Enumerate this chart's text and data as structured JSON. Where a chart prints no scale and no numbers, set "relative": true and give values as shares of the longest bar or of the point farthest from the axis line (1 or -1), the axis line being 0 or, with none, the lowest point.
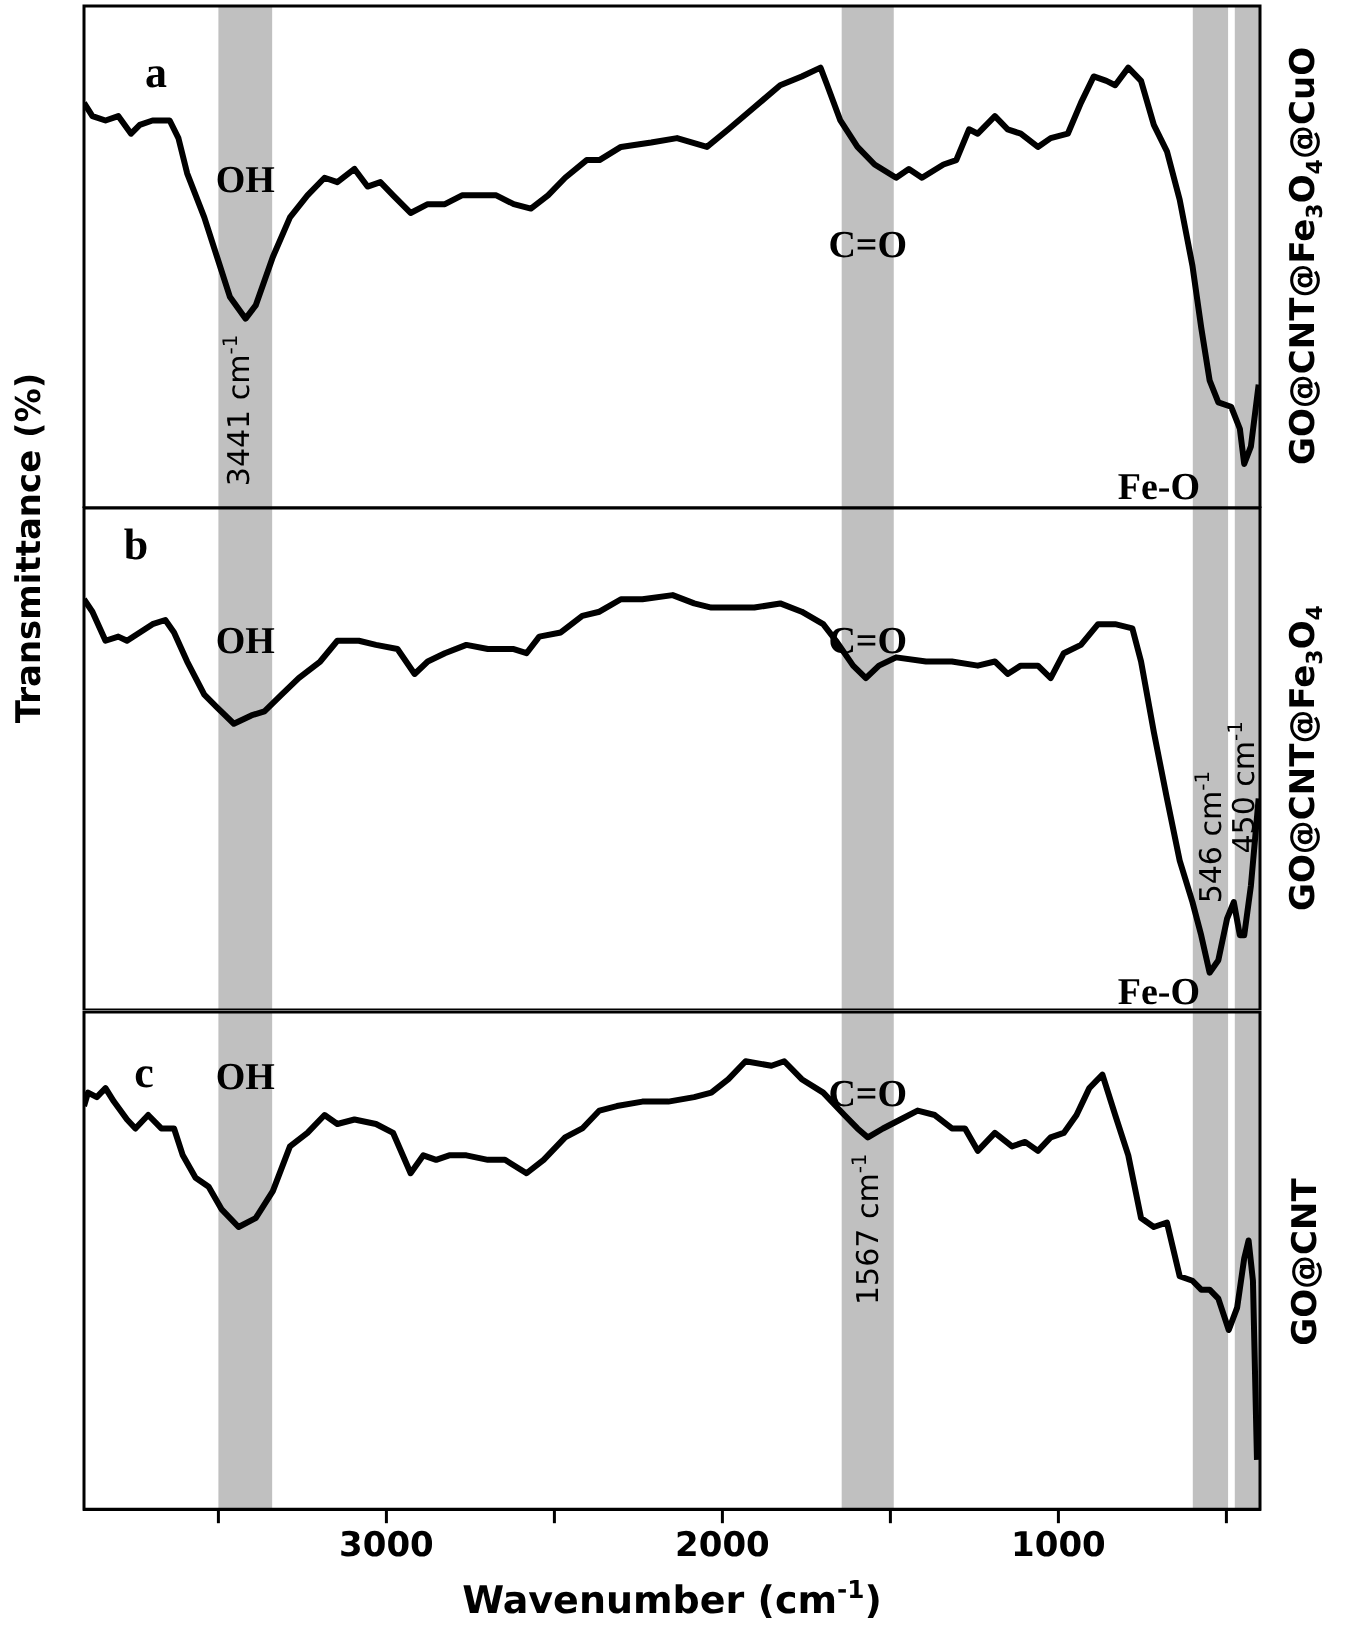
{
  "chart_data": [
    {
      "type": "line",
      "relative": true,
      "color": "#000000",
      "y2label": "GO@CNT@Fe$_{3}$O$_{4}$@CuO",
      "tick_labels": false,
      "xlim": [
        3900,
        400
      ],
      "x": [
        3900,
        3875,
        3836,
        3798,
        3760,
        3734,
        3696,
        3645,
        3619,
        3593,
        3542,
        3504,
        3466,
        3419,
        3389,
        3338,
        3287,
        3235,
        3184,
        3146,
        3095,
        3056,
        3018,
        2980,
        2928,
        2877,
        2826,
        2775,
        2724,
        2673,
        2621,
        2570,
        2519,
        2468,
        2404,
        2366,
        2302,
        2212,
        2135,
        2046,
        1982,
        1905,
        1828,
        1764,
        1708,
        1688,
        1649,
        1598,
        1547,
        1483,
        1445,
        1406,
        1342,
        1304,
        1266,
        1240,
        1189,
        1151,
        1112,
        1061,
        1023,
        972,
        933,
        895,
        857,
        831,
        792,
        754,
        716,
        677,
        639,
        601,
        575,
        550,
        524,
        486,
        460,
        447,
        427,
        404
      ],
      "values": [
        0.92,
        0.89,
        0.88,
        0.89,
        0.85,
        0.87,
        0.88,
        0.88,
        0.84,
        0.76,
        0.66,
        0.57,
        0.48,
        0.43,
        0.46,
        0.57,
        0.66,
        0.71,
        0.75,
        0.74,
        0.77,
        0.73,
        0.74,
        0.71,
        0.67,
        0.69,
        0.69,
        0.71,
        0.71,
        0.71,
        0.69,
        0.68,
        0.71,
        0.75,
        0.79,
        0.79,
        0.82,
        0.83,
        0.84,
        0.82,
        0.86,
        0.91,
        0.96,
        0.98,
        1.0,
        0.96,
        0.88,
        0.82,
        0.78,
        0.75,
        0.77,
        0.75,
        0.78,
        0.79,
        0.86,
        0.85,
        0.89,
        0.86,
        0.85,
        0.82,
        0.84,
        0.85,
        0.92,
        0.98,
        0.97,
        0.96,
        1.0,
        0.97,
        0.87,
        0.81,
        0.7,
        0.55,
        0.41,
        0.29,
        0.24,
        0.23,
        0.18,
        0.1,
        0.14,
        0.28
      ],
      "bands": [
        {
          "axis": "x",
          "from": 3500,
          "to": 3340,
          "color": "#c0c0c0",
          "label": "OH"
        },
        {
          "axis": "x",
          "from": 1645,
          "to": 1490,
          "color": "#c0c0c0",
          "label": "C=O"
        },
        {
          "axis": "x",
          "from": 600,
          "to": 495,
          "color": "#c0c0c0",
          "label": "Fe-O"
        },
        {
          "axis": "x",
          "from": 475,
          "to": 400,
          "color": "#c0c0c0"
        }
      ],
      "annotations": [
        "a",
        {
          "text": "3441 cm$^{-1}$",
          "x": 3441,
          "y": 0.43
        }
      ]
    },
    {
      "type": "line",
      "relative": true,
      "color": "#000000",
      "ylabel": "Transmittance (%)",
      "y2label": "GO@CNT@Fe$_{3}$O$_{4}$",
      "tick_labels": false,
      "xlim": [
        3900,
        400
      ],
      "x": [
        3900,
        3875,
        3836,
        3798,
        3772,
        3734,
        3696,
        3658,
        3632,
        3593,
        3542,
        3505,
        3454,
        3402,
        3363,
        3312,
        3261,
        3197,
        3146,
        3082,
        3031,
        2967,
        2916,
        2877,
        2826,
        2762,
        2698,
        2621,
        2583,
        2545,
        2481,
        2417,
        2366,
        2302,
        2238,
        2148,
        2084,
        2033,
        1956,
        1905,
        1828,
        1764,
        1700,
        1662,
        1611,
        1573,
        1534,
        1483,
        1394,
        1317,
        1240,
        1189,
        1151,
        1112,
        1061,
        1023,
        984,
        933,
        882,
        831,
        780,
        754,
        716,
        677,
        639,
        601,
        575,
        550,
        524,
        498,
        478,
        460,
        447,
        427,
        404
      ],
      "values": [
        0.99,
        0.96,
        0.89,
        0.9,
        0.89,
        0.91,
        0.93,
        0.94,
        0.91,
        0.84,
        0.76,
        0.73,
        0.69,
        0.71,
        0.72,
        0.76,
        0.8,
        0.84,
        0.89,
        0.89,
        0.88,
        0.87,
        0.81,
        0.84,
        0.86,
        0.88,
        0.87,
        0.87,
        0.86,
        0.9,
        0.91,
        0.95,
        0.96,
        0.99,
        0.99,
        1.0,
        0.98,
        0.97,
        0.97,
        0.97,
        0.98,
        0.96,
        0.93,
        0.89,
        0.83,
        0.8,
        0.83,
        0.85,
        0.84,
        0.84,
        0.83,
        0.84,
        0.81,
        0.83,
        0.83,
        0.8,
        0.86,
        0.88,
        0.93,
        0.93,
        0.92,
        0.84,
        0.67,
        0.51,
        0.36,
        0.26,
        0.18,
        0.09,
        0.12,
        0.22,
        0.26,
        0.18,
        0.18,
        0.3,
        0.51
      ],
      "bands": [
        {
          "axis": "x",
          "from": 3500,
          "to": 3340,
          "color": "#c0c0c0",
          "label": "OH"
        },
        {
          "axis": "x",
          "from": 1645,
          "to": 1490,
          "color": "#c0c0c0",
          "label": "C=O"
        },
        {
          "axis": "x",
          "from": 600,
          "to": 495,
          "color": "#c0c0c0",
          "label": "Fe-O"
        },
        {
          "axis": "x",
          "from": 475,
          "to": 400,
          "color": "#c0c0c0"
        }
      ],
      "annotations": [
        "b",
        {
          "text": "546 cm$^{-1}$",
          "x": 546,
          "y": 0.09
        },
        {
          "text": "450 cm$^{-1}$",
          "x": 450,
          "y": 0.18
        }
      ]
    },
    {
      "type": "line",
      "relative": true,
      "color": "#000000",
      "xlabel": "Wavenumber (cm$^{-1}$)",
      "y2label": "GO@CNT",
      "tick_labels": "x",
      "xlim": [
        3900,
        400
      ],
      "xticks": [
        {
          "value": 3500,
          "label": null
        },
        3000,
        {
          "value": 2500,
          "label": null
        },
        2000,
        {
          "value": 1500,
          "label": null
        },
        1000,
        {
          "value": 500,
          "label": null
        }
      ],
      "x": [
        3900,
        3888,
        3862,
        3836,
        3811,
        3772,
        3747,
        3709,
        3670,
        3632,
        3606,
        3568,
        3529,
        3491,
        3440,
        3389,
        3338,
        3287,
        3235,
        3184,
        3146,
        3095,
        3031,
        2980,
        2928,
        2890,
        2852,
        2813,
        2762,
        2698,
        2647,
        2583,
        2532,
        2468,
        2417,
        2366,
        2314,
        2238,
        2161,
        2084,
        2033,
        1982,
        1931,
        1854,
        1816,
        1764,
        1700,
        1637,
        1598,
        1567,
        1522,
        1470,
        1419,
        1368,
        1317,
        1278,
        1240,
        1189,
        1138,
        1099,
        1061,
        1023,
        984,
        946,
        908,
        869,
        831,
        792,
        754,
        716,
        677,
        639,
        601,
        575,
        550,
        524,
        493,
        468,
        447,
        434,
        421,
        409
      ],
      "values": [
        0.9,
        0.93,
        0.92,
        0.94,
        0.91,
        0.87,
        0.85,
        0.88,
        0.85,
        0.85,
        0.79,
        0.74,
        0.72,
        0.67,
        0.63,
        0.65,
        0.71,
        0.81,
        0.84,
        0.88,
        0.86,
        0.87,
        0.86,
        0.84,
        0.75,
        0.79,
        0.78,
        0.79,
        0.79,
        0.78,
        0.78,
        0.75,
        0.78,
        0.83,
        0.85,
        0.89,
        0.9,
        0.91,
        0.91,
        0.92,
        0.93,
        0.96,
        1.0,
        0.99,
        1.0,
        0.96,
        0.93,
        0.88,
        0.85,
        0.83,
        0.85,
        0.87,
        0.89,
        0.88,
        0.85,
        0.85,
        0.8,
        0.84,
        0.81,
        0.82,
        0.8,
        0.83,
        0.84,
        0.88,
        0.94,
        0.97,
        0.88,
        0.79,
        0.65,
        0.63,
        0.64,
        0.52,
        0.51,
        0.49,
        0.49,
        0.47,
        0.4,
        0.45,
        0.56,
        0.6,
        0.51,
        0.11
      ],
      "bands": [
        {
          "axis": "x",
          "from": 3500,
          "to": 3340,
          "color": "#c0c0c0",
          "label": "OH"
        },
        {
          "axis": "x",
          "from": 1645,
          "to": 1490,
          "color": "#c0c0c0",
          "label": "C=O"
        },
        {
          "axis": "x",
          "from": 600,
          "to": 495,
          "color": "#c0c0c0"
        },
        {
          "axis": "x",
          "from": 475,
          "to": 400,
          "color": "#c0c0c0"
        }
      ],
      "annotations": [
        "c",
        {
          "text": "1567 cm$^{-1}$",
          "x": 1567,
          "y": 0.83
        }
      ]
    }
  ]
}
